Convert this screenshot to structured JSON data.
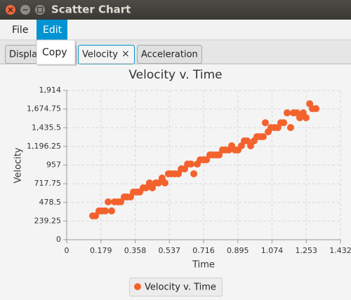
{
  "window": {
    "title": "Scatter Chart"
  },
  "menu": {
    "items": [
      "File",
      "Edit"
    ]
  },
  "menu_dropdown": {
    "items": [
      "Copy"
    ]
  },
  "tabs": {
    "items": [
      "Displa",
      "Velocity",
      "Acceleration"
    ],
    "close": "×"
  },
  "chart_data": {
    "type": "scatter",
    "title": "Velocity v. Time",
    "x_label": "Time",
    "y_label": "Velocity",
    "xlim": [
      0,
      1.432
    ],
    "ylim": [
      0,
      1914
    ],
    "xticks": [
      0,
      0.179,
      0.358,
      0.537,
      0.716,
      0.895,
      1.074,
      1.253,
      1.432
    ],
    "yticks": [
      0,
      239.25,
      478.5,
      717.75,
      957,
      {
        "value": 1196.25,
        "label": "1,196.25"
      },
      {
        "value": 1435.5,
        "label": "1,435.5"
      },
      {
        "value": 1674.75,
        "label": "1,674.75"
      },
      {
        "value": 1914,
        "label": "1,914"
      }
    ],
    "grid": true,
    "legend": "bottom",
    "series": [
      {
        "name": "Velocity v. Time",
        "color": "#f3622d",
        "x": [
          0.136,
          0.151,
          0.169,
          0.184,
          0.202,
          0.217,
          0.235,
          0.25,
          0.268,
          0.283,
          0.301,
          0.316,
          0.334,
          0.349,
          0.367,
          0.382,
          0.4,
          0.415,
          0.433,
          0.448,
          0.466,
          0.481,
          0.499,
          0.514,
          0.532,
          0.547,
          0.565,
          0.584,
          0.599,
          0.617,
          0.632,
          0.65,
          0.665,
          0.683,
          0.698,
          0.716,
          0.731,
          0.749,
          0.764,
          0.782,
          0.797,
          0.815,
          0.83,
          0.848,
          0.863,
          0.881,
          0.896,
          0.914,
          0.929,
          0.944,
          0.962,
          0.98,
          0.995,
          1.013,
          1.028,
          1.039,
          1.054,
          1.068,
          1.087,
          1.105,
          1.12,
          1.135,
          1.153,
          1.171,
          1.186,
          1.204,
          1.219,
          1.237,
          1.252,
          1.271,
          1.285,
          1.304
        ],
        "values": [
          306,
          306,
          369,
          369,
          369,
          485,
          369,
          485,
          485,
          485,
          548,
          548,
          548,
          611,
          611,
          611,
          665,
          665,
          728,
          665,
          728,
          728,
          791,
          728,
          845,
          845,
          845,
          845,
          908,
          908,
          970,
          970,
          845,
          970,
          1024,
          1024,
          1024,
          1087,
          1087,
          1087,
          1087,
          1150,
          1150,
          1150,
          1204,
          1150,
          1150,
          1204,
          1267,
          1267,
          1204,
          1267,
          1321,
          1321,
          1321,
          1500,
          1384,
          1438,
          1438,
          1438,
          1500,
          1500,
          1626,
          1438,
          1626,
          1626,
          1564,
          1626,
          1564,
          1743,
          1680,
          1680
        ]
      }
    ]
  }
}
